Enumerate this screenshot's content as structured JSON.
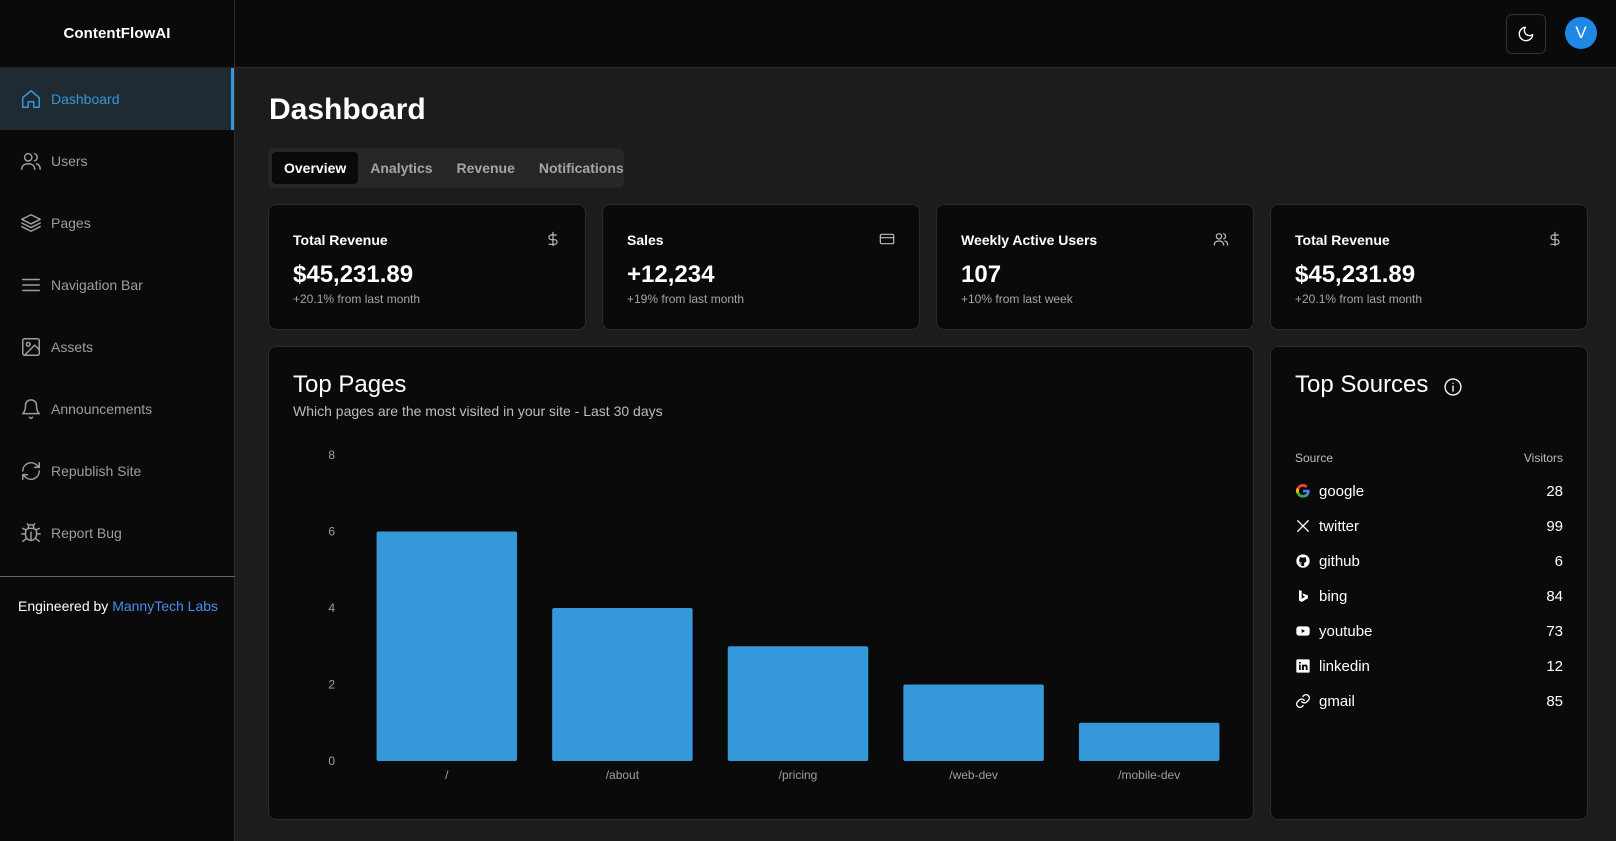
{
  "app": {
    "brand": "ContentFlowAI",
    "user_initial": "V"
  },
  "sidebar": {
    "items": [
      {
        "label": "Dashboard",
        "icon": "home-icon",
        "active": true
      },
      {
        "label": "Users",
        "icon": "users-icon"
      },
      {
        "label": "Pages",
        "icon": "layers-icon"
      },
      {
        "label": "Navigation Bar",
        "icon": "menu-icon"
      },
      {
        "label": "Assets",
        "icon": "image-icon"
      },
      {
        "label": "Announcements",
        "icon": "bell-icon"
      },
      {
        "label": "Republish Site",
        "icon": "refresh-icon"
      },
      {
        "label": "Report Bug",
        "icon": "bug-icon"
      }
    ],
    "credit_prefix": "Engineered by",
    "credit_link": "MannyTech Labs"
  },
  "main": {
    "title": "Dashboard",
    "tabs": [
      {
        "label": "Overview",
        "active": true
      },
      {
        "label": "Analytics"
      },
      {
        "label": "Revenue"
      },
      {
        "label": "Notifications"
      }
    ],
    "stats": [
      {
        "title": "Total Revenue",
        "value": "$45,231.89",
        "delta": "+20.1% from last month",
        "icon": "dollar-icon"
      },
      {
        "title": "Sales",
        "value": "+12,234",
        "delta": "+19% from last month",
        "icon": "credit-card-icon"
      },
      {
        "title": "Weekly Active Users",
        "value": "107",
        "delta": "+10% from last week",
        "icon": "users-icon"
      },
      {
        "title": "Total Revenue",
        "value": "$45,231.89",
        "delta": "+20.1% from last month",
        "icon": "dollar-icon"
      }
    ],
    "top_pages": {
      "title": "Top Pages",
      "subtitle": "Which pages are the most visited in your site - Last 30 days"
    },
    "top_sources": {
      "title": "Top Sources",
      "col_source": "Source",
      "col_visitors": "Visitors",
      "rows": [
        {
          "name": "google",
          "visitors": "28",
          "icon": "google-icon"
        },
        {
          "name": "twitter",
          "visitors": "99",
          "icon": "x-twitter-icon"
        },
        {
          "name": "github",
          "visitors": "6",
          "icon": "github-icon"
        },
        {
          "name": "bing",
          "visitors": "84",
          "icon": "bing-icon"
        },
        {
          "name": "youtube",
          "visitors": "73",
          "icon": "youtube-icon"
        },
        {
          "name": "linkedin",
          "visitors": "12",
          "icon": "linkedin-icon"
        },
        {
          "name": "gmail",
          "visitors": "85",
          "icon": "link-icon"
        }
      ]
    }
  },
  "colors": {
    "accent": "#3498db",
    "bar": "#3498db",
    "avatar": "#1e88e5"
  },
  "chart_data": {
    "type": "bar",
    "categories": [
      "/",
      "/about",
      "/pricing",
      "/web-dev",
      "/mobile-dev"
    ],
    "values": [
      6,
      4,
      3,
      2,
      1
    ],
    "ylim": [
      0,
      8
    ],
    "yticks": [
      "0",
      "2",
      "4",
      "6",
      "8"
    ],
    "title": "",
    "xlabel": "",
    "ylabel": "",
    "grid": false
  }
}
